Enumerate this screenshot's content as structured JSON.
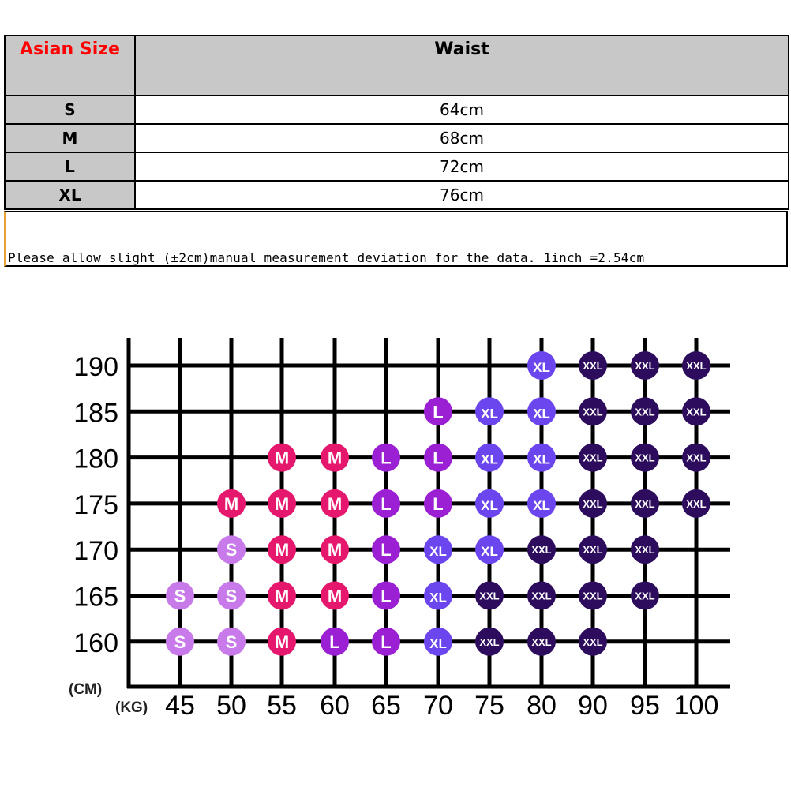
{
  "table": {
    "header": [
      "Asian Size",
      "Waist"
    ],
    "rows": [
      [
        "S",
        "64cm"
      ],
      [
        "M",
        "68cm"
      ],
      [
        "L",
        "72cm"
      ],
      [
        "XL",
        "76cm"
      ]
    ],
    "note": "Please allow slight (±2cm)manual measurement deviation for the data. 1inch =2.54cm"
  },
  "size_chart": {
    "height_unit": "(CM)",
    "weight_unit": "(KG)",
    "weights": [
      "45",
      "50",
      "55",
      "60",
      "65",
      "70",
      "75",
      "80",
      "90",
      "95",
      "100"
    ],
    "heights": [
      "190",
      "185",
      "180",
      "175",
      "170",
      "165",
      "160"
    ],
    "cells": [
      [
        null,
        null,
        null,
        null,
        null,
        null,
        null,
        "XL",
        "XXL",
        "XXL",
        "XXL"
      ],
      [
        null,
        null,
        null,
        null,
        null,
        "L",
        "XL",
        "XL",
        "XXL",
        "XXL",
        "XXL"
      ],
      [
        null,
        null,
        "M",
        "M",
        "L",
        "L",
        "XL",
        "XL",
        "XXL",
        "XXL",
        "XXL"
      ],
      [
        null,
        "M",
        "M",
        "M",
        "L",
        "L",
        "XL",
        "XL",
        "XXL",
        "XXL",
        "XXL"
      ],
      [
        null,
        "S",
        "M",
        "M",
        "L",
        "XL",
        "XL",
        "XXL",
        "XXL",
        "XXL",
        null
      ],
      [
        "S",
        "S",
        "M",
        "M",
        "L",
        "XL",
        "XXL",
        "XXL",
        "XXL",
        "XXL",
        null
      ],
      [
        "S",
        "S",
        "M",
        "L",
        "L",
        "XL",
        "XXL",
        "XXL",
        "XXL",
        null,
        null
      ]
    ],
    "size_colors": {
      "S": "#c97aea",
      "M": "#e5186e",
      "L": "#9b1fd3",
      "XL": "#6b45ee",
      "XXL": "#2d0c5e"
    }
  }
}
